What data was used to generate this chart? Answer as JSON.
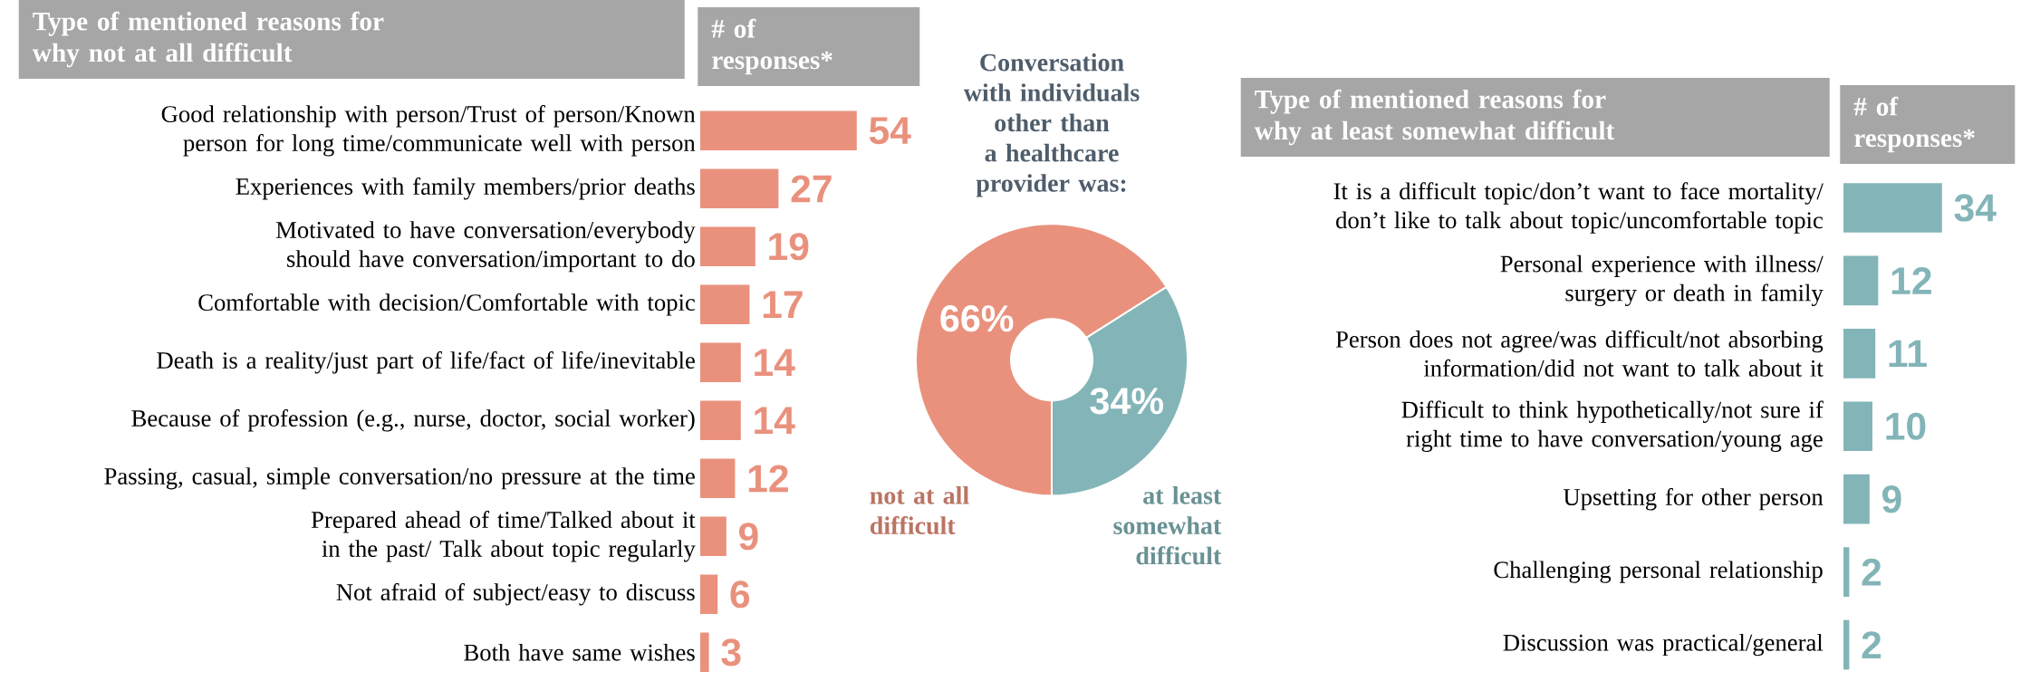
{
  "chart_data": [
    {
      "type": "bar",
      "orientation": "horizontal",
      "title": "Type of mentioned reasons for why not at all difficult",
      "xlabel": "# of responses*",
      "categories": [
        "Good relationship with person/Trust of person/Known person for long time/communicate well with person",
        "Experiences with family members/prior deaths",
        "Motivated to have conversation/everybody should have conversation/important to do",
        "Comfortable with decision/Comfortable with topic",
        "Death is a reality/just part of life/fact of life/inevitable",
        "Because of profession (e.g., nurse, doctor, social worker)",
        "Passing, casual, simple conversation/no pressure at the time",
        "Prepared ahead of time/Talked about it in the past/ Talk about topic regularly",
        "Not afraid of subject/easy to discuss",
        "Both have same wishes"
      ],
      "values": [
        54,
        27,
        19,
        17,
        14,
        14,
        12,
        9,
        6,
        3
      ],
      "color": "#e9917d",
      "data_labels": true
    },
    {
      "type": "donut",
      "title": "Conversation with individuals other than a healthcare provider was:",
      "categories": [
        "not at all difficult",
        "at least somewhat difficult"
      ],
      "values": [
        66,
        34
      ],
      "colors": [
        "#e9917d",
        "#83b5b8"
      ],
      "value_labels": [
        "66%",
        "34%"
      ]
    },
    {
      "type": "bar",
      "orientation": "horizontal",
      "title": "Type of mentioned reasons for why at least somewhat difficult",
      "xlabel": "# of responses*",
      "categories": [
        "It is a difficult topic/don’t want to face mortality/ don’t like to talk about topic/uncomfortable topic",
        "Personal experience with illness/ surgery or death in family",
        "Person does not agree/was difficult/not absorbing information/did not want to talk about it",
        "Difficult to think hypothetically/not sure if right time to have conversation/young age",
        "Upsetting for other person",
        "Challenging personal relationship",
        "Discussion was practical/general"
      ],
      "values": [
        34,
        12,
        11,
        10,
        9,
        2,
        2
      ],
      "color": "#83b5b8",
      "data_labels": true
    }
  ]
}
